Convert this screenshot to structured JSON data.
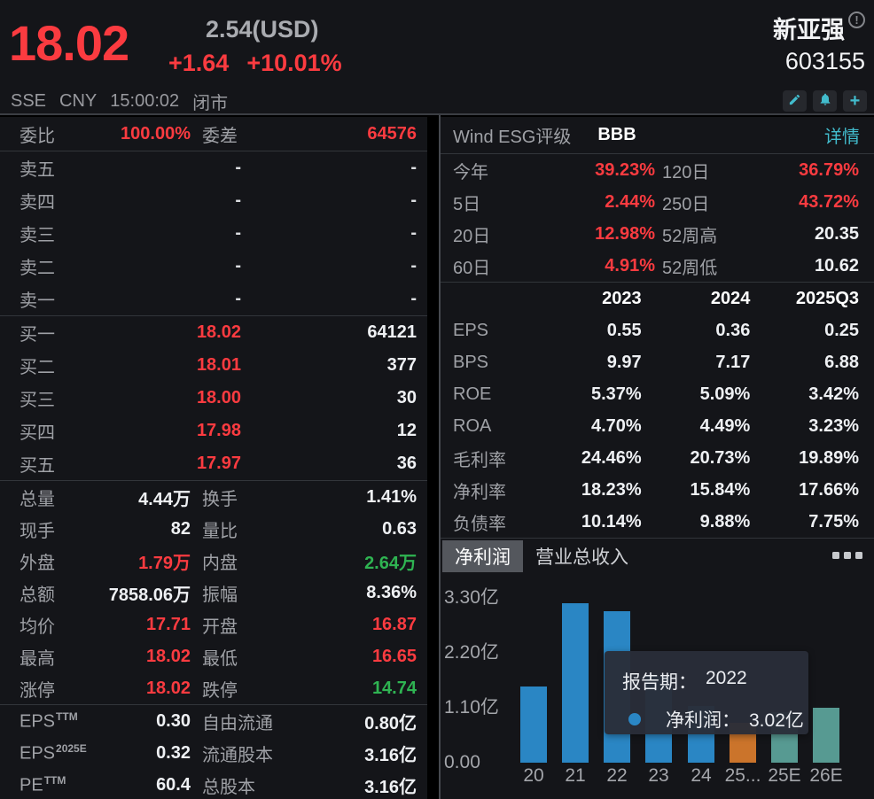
{
  "colors": {
    "up": "#fb3b40",
    "down": "#2fb452",
    "link": "#42bccd",
    "value": "#eef0f3",
    "label": "#9fa1a6"
  },
  "header": {
    "price": "18.02",
    "usd_price": "2.54(USD)",
    "change": "+1.64",
    "change_pct": "+10.01%",
    "stock_name": "新亚强",
    "info_badge": "!",
    "stock_code": "603155",
    "status": {
      "exchange": "SSE",
      "currency": "CNY",
      "time": "15:00:02",
      "market_state": "闭市"
    }
  },
  "order_book": {
    "summary": {
      "label1": "委比",
      "value1": "100.00%",
      "label2": "委差",
      "value2": "64576"
    },
    "asks": [
      {
        "label": "卖五",
        "price": "-",
        "volume": "-"
      },
      {
        "label": "卖四",
        "price": "-",
        "volume": "-"
      },
      {
        "label": "卖三",
        "price": "-",
        "volume": "-"
      },
      {
        "label": "卖二",
        "price": "-",
        "volume": "-"
      },
      {
        "label": "卖一",
        "price": "-",
        "volume": "-"
      }
    ],
    "bids": [
      {
        "label": "买一",
        "price": "18.02",
        "volume": "64121"
      },
      {
        "label": "买二",
        "price": "18.01",
        "volume": "377"
      },
      {
        "label": "买三",
        "price": "18.00",
        "volume": "30"
      },
      {
        "label": "买四",
        "price": "17.98",
        "volume": "12"
      },
      {
        "label": "买五",
        "price": "17.97",
        "volume": "36"
      }
    ]
  },
  "stats": [
    {
      "label1": "总量",
      "value1": "4.44万",
      "cls1": "white",
      "label2": "换手",
      "value2": "1.41%",
      "cls2": "white"
    },
    {
      "label1": "现手",
      "value1": "82",
      "cls1": "white",
      "label2": "量比",
      "value2": "0.63",
      "cls2": "white"
    },
    {
      "label1": "外盘",
      "value1": "1.79万",
      "cls1": "red",
      "label2": "内盘",
      "value2": "2.64万",
      "cls2": "green"
    },
    {
      "label1": "总额",
      "value1": "7858.06万",
      "cls1": "white",
      "label2": "振幅",
      "value2": "8.36%",
      "cls2": "white"
    },
    {
      "label1": "均价",
      "value1": "17.71",
      "cls1": "red",
      "label2": "开盘",
      "value2": "16.87",
      "cls2": "red"
    },
    {
      "label1": "最高",
      "value1": "18.02",
      "cls1": "red",
      "label2": "最低",
      "value2": "16.65",
      "cls2": "red"
    },
    {
      "label1": "涨停",
      "value1": "18.02",
      "cls1": "red",
      "label2": "跌停",
      "value2": "14.74",
      "cls2": "green"
    }
  ],
  "capital": [
    {
      "label1": "EPS",
      "sup1": "TTM",
      "value1": "0.30",
      "label2": "自由流通",
      "value2": "0.80亿"
    },
    {
      "label1": "EPS",
      "sup1": "2025E",
      "value1": "0.32",
      "label2": "流通股本",
      "value2": "3.16亿"
    },
    {
      "label1": "PE",
      "sup1": "TTM",
      "value1": "60.4",
      "label2": "总股本",
      "value2": "3.16亿"
    }
  ],
  "esg": {
    "label": "Wind ESG评级",
    "rating": "BBB",
    "detail": "详情"
  },
  "performance": [
    {
      "label1": "今年",
      "value1": "39.23%",
      "cls1": "red",
      "label2": "120日",
      "value2": "36.79%",
      "cls2": "red"
    },
    {
      "label1": "5日",
      "value1": "2.44%",
      "cls1": "red",
      "label2": "250日",
      "value2": "43.72%",
      "cls2": "red"
    },
    {
      "label1": "20日",
      "value1": "12.98%",
      "cls1": "red",
      "label2": "52周高",
      "value2": "20.35",
      "cls2": "white"
    },
    {
      "label1": "60日",
      "value1": "4.91%",
      "cls1": "red",
      "label2": "52周低",
      "value2": "10.62",
      "cls2": "white"
    }
  ],
  "financials": {
    "columns": [
      "2023",
      "2024",
      "2025Q3"
    ],
    "rows": [
      {
        "label": "EPS",
        "v1": "0.55",
        "v2": "0.36",
        "v3": "0.25"
      },
      {
        "label": "BPS",
        "v1": "9.97",
        "v2": "7.17",
        "v3": "6.88"
      },
      {
        "label": "ROE",
        "v1": "5.37%",
        "v2": "5.09%",
        "v3": "3.42%"
      },
      {
        "label": "ROA",
        "v1": "4.70%",
        "v2": "4.49%",
        "v3": "3.23%"
      },
      {
        "label": "毛利率",
        "v1": "24.46%",
        "v2": "20.73%",
        "v3": "19.89%"
      },
      {
        "label": "净利率",
        "v1": "18.23%",
        "v2": "15.84%",
        "v3": "17.66%"
      },
      {
        "label": "负债率",
        "v1": "10.14%",
        "v2": "9.88%",
        "v3": "7.75%"
      }
    ]
  },
  "chart_tabs": {
    "tab1": "净利润",
    "tab2": "营业总收入"
  },
  "chart_data": {
    "type": "bar",
    "title": "净利润",
    "categories": [
      "20",
      "21",
      "22",
      "23",
      "24",
      "25...",
      "25E",
      "26E"
    ],
    "values": [
      1.52,
      3.18,
      3.02,
      1.74,
      1.14,
      0.79,
      1.01,
      1.1
    ],
    "unit": "亿",
    "yticks": [
      "3.30亿",
      "2.20亿",
      "1.10亿",
      "0.00"
    ],
    "ylim": [
      0,
      3.77
    ],
    "grid": false,
    "bar_colors": [
      "#2a86c4",
      "#2a86c4",
      "#2a86c4",
      "#2a86c4",
      "#2a86c4",
      "#cb742b",
      "#579a92",
      "#579a92"
    ],
    "tooltip": {
      "line1_label": "报告期：",
      "line1_value": "2022",
      "line2_label": "净利润：",
      "line2_value": "3.02亿"
    }
  }
}
